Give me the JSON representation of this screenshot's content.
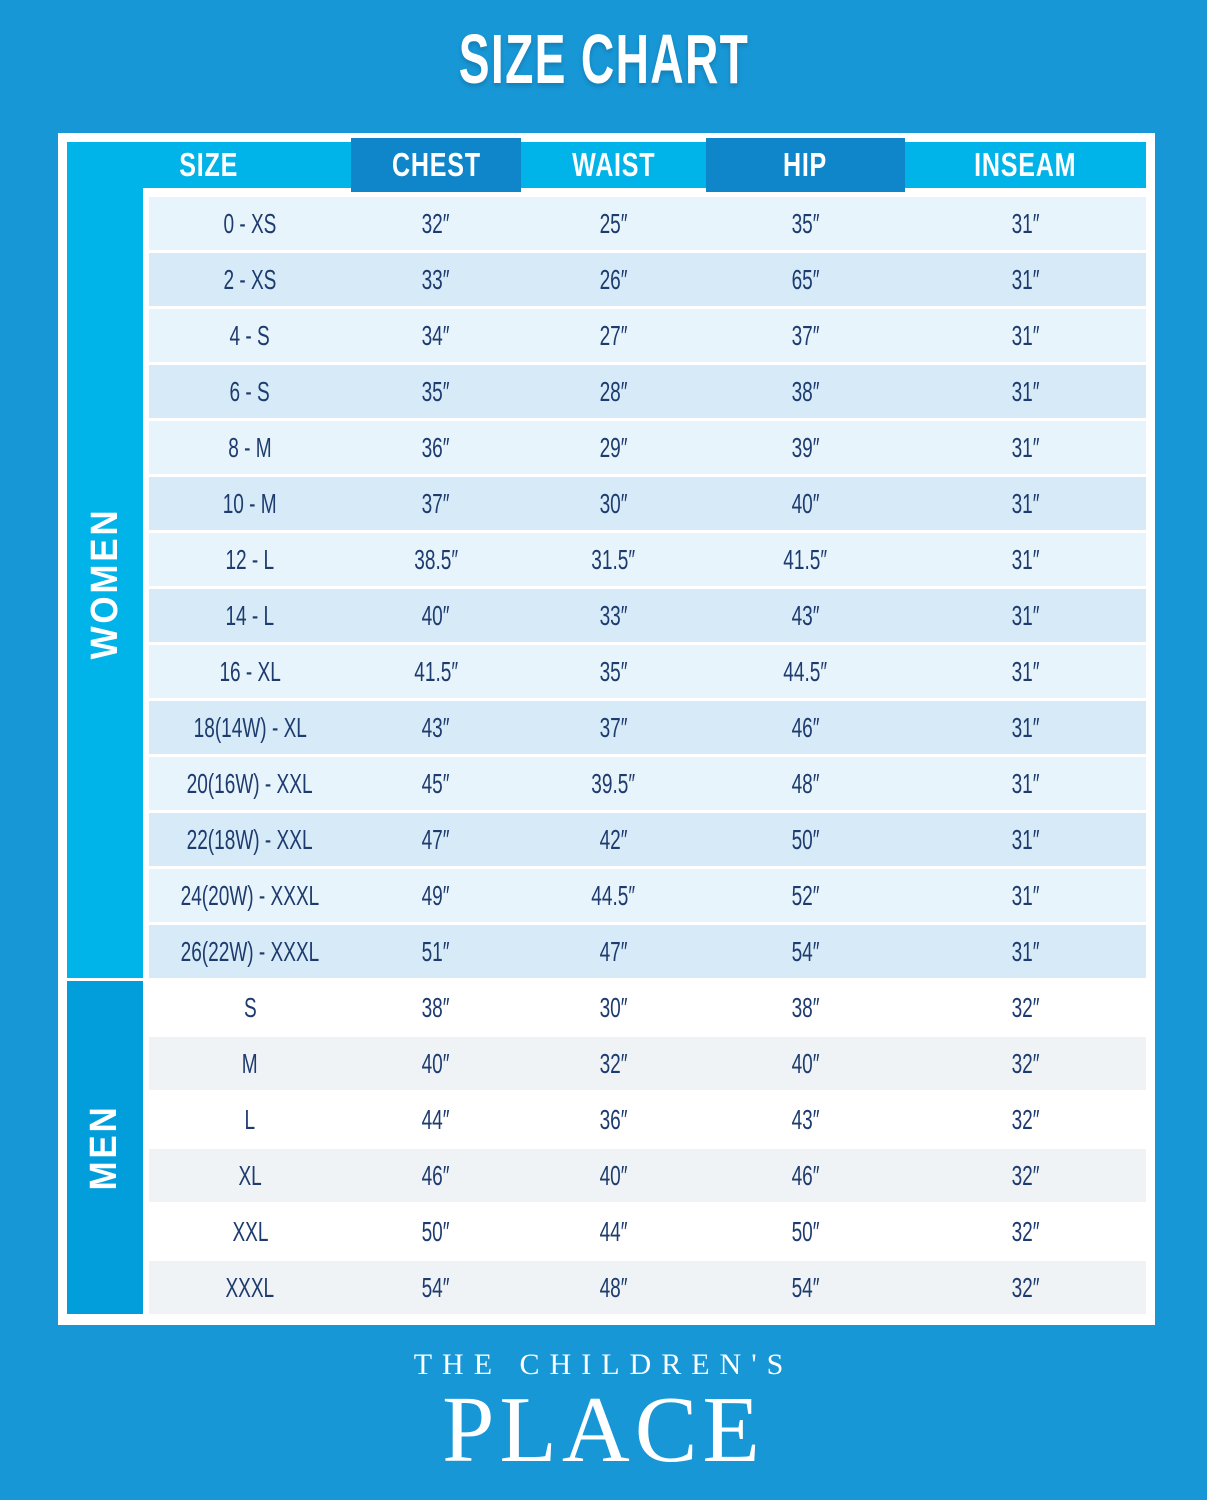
{
  "title": "SIZE CHART",
  "footer": {
    "brand_line1": "THE CHILDREN'S",
    "brand_line2": "PLACE"
  },
  "colors": {
    "page_bg": "#1897d6",
    "frame": "#ffffff",
    "header_light": "#00b3e9",
    "header_dark": "#0e86c9",
    "women_col": "#00b3e9",
    "men_col": "#029ddb",
    "women_row_odd": "#e7f4fb",
    "women_row_even": "#d6ebf7",
    "men_row_odd": "#ffffff",
    "men_row_even": "#eff3f6",
    "cell_text": "#1d3b6e"
  },
  "chart_data": {
    "type": "table",
    "title": "SIZE CHART",
    "columns": [
      "SIZE",
      "CHEST",
      "WAIST",
      "HIP",
      "INSEAM"
    ],
    "sections": [
      {
        "group": "WOMEN",
        "rows": [
          [
            "0 - XS",
            "32″",
            "25″",
            "35″",
            "31″"
          ],
          [
            "2 - XS",
            "33″",
            "26″",
            "65″",
            "31″"
          ],
          [
            "4 - S",
            "34″",
            "27″",
            "37″",
            "31″"
          ],
          [
            "6 - S",
            "35″",
            "28″",
            "38″",
            "31″"
          ],
          [
            "8 - M",
            "36″",
            "29″",
            "39″",
            "31″"
          ],
          [
            "10 - M",
            "37″",
            "30″",
            "40″",
            "31″"
          ],
          [
            "12 - L",
            "38.5″",
            "31.5″",
            "41.5″",
            "31″"
          ],
          [
            "14 - L",
            "40″",
            "33″",
            "43″",
            "31″"
          ],
          [
            "16 - XL",
            "41.5″",
            "35″",
            "44.5″",
            "31″"
          ],
          [
            "18(14W) - XL",
            "43″",
            "37″",
            "46″",
            "31″"
          ],
          [
            "20(16W) - XXL",
            "45″",
            "39.5″",
            "48″",
            "31″"
          ],
          [
            "22(18W) - XXL",
            "47″",
            "42″",
            "50″",
            "31″"
          ],
          [
            "24(20W) - XXXL",
            "49″",
            "44.5″",
            "52″",
            "31″"
          ],
          [
            "26(22W) - XXXL",
            "51″",
            "47″",
            "54″",
            "31″"
          ]
        ]
      },
      {
        "group": "MEN",
        "rows": [
          [
            "S",
            "38″",
            "30″",
            "38″",
            "32″"
          ],
          [
            "M",
            "40″",
            "32″",
            "40″",
            "32″"
          ],
          [
            "L",
            "44″",
            "36″",
            "43″",
            "32″"
          ],
          [
            "XL",
            "46″",
            "40″",
            "46″",
            "32″"
          ],
          [
            "XXL",
            "50″",
            "44″",
            "50″",
            "32″"
          ],
          [
            "XXXL",
            "54″",
            "48″",
            "54″",
            "32″"
          ]
        ]
      }
    ]
  }
}
